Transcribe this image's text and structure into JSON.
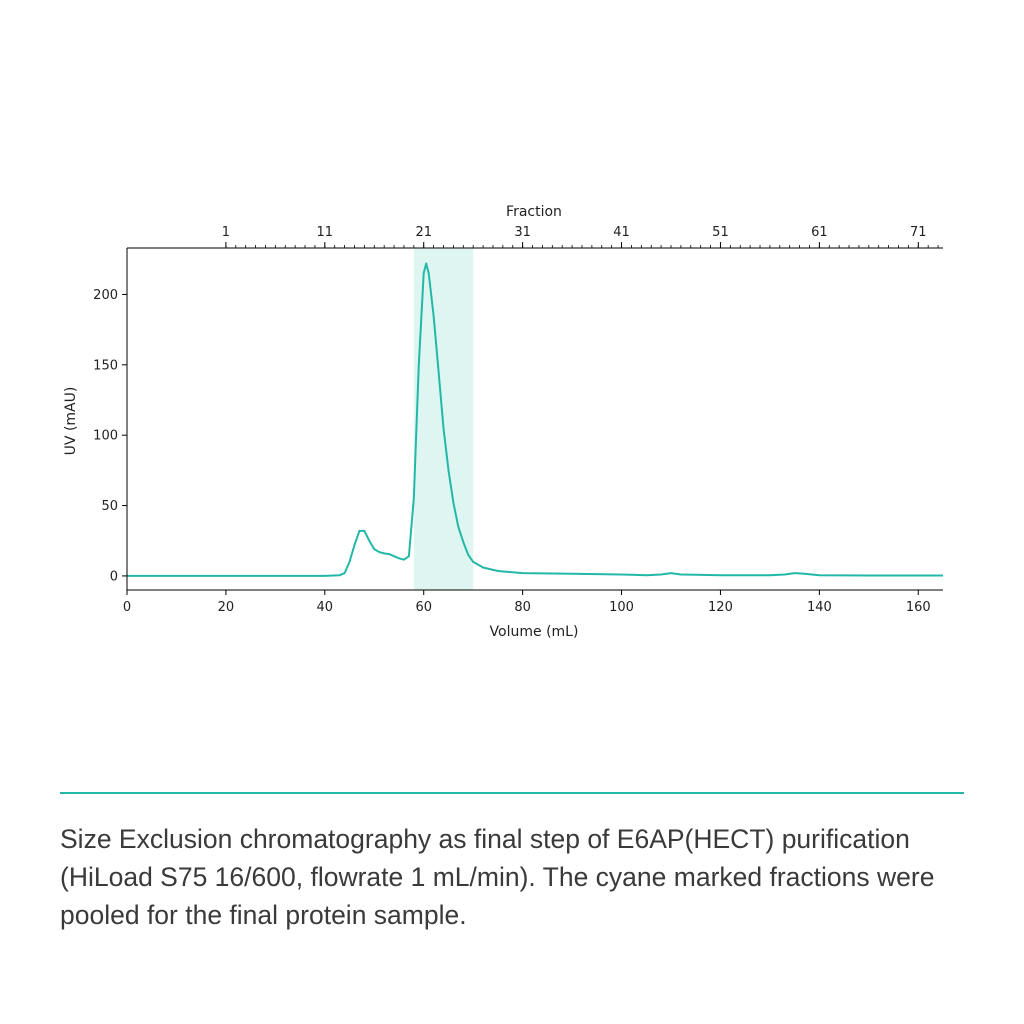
{
  "chart_data": {
    "type": "line",
    "xlabel": "Volume (mL)",
    "ylabel": "UV (mAU)",
    "top_axis_label": "Fraction",
    "xlim": [
      0,
      165
    ],
    "ylim": [
      -10,
      233
    ],
    "x_ticks": [
      0,
      20,
      40,
      60,
      80,
      100,
      120,
      140,
      160
    ],
    "y_ticks": [
      0,
      50,
      100,
      150,
      200
    ],
    "fraction_ticks": [
      {
        "label": "1",
        "volume": 20
      },
      {
        "label": "11",
        "volume": 40
      },
      {
        "label": "21",
        "volume": 60
      },
      {
        "label": "31",
        "volume": 80
      },
      {
        "label": "41",
        "volume": 100
      },
      {
        "label": "51",
        "volume": 120
      },
      {
        "label": "61",
        "volume": 140
      },
      {
        "label": "71",
        "volume": 160
      }
    ],
    "fraction_minor_step": 2,
    "fraction_minor_range": [
      20,
      164
    ],
    "highlight_range": [
      58,
      70
    ],
    "line_color": "#22b8a8",
    "highlight_color": "#d9f3ef",
    "grid": false,
    "series": [
      {
        "x": [
          0,
          10,
          20,
          30,
          40,
          43,
          44,
          45,
          46,
          47,
          48,
          49,
          50,
          51,
          52,
          53,
          54,
          55,
          56,
          57,
          58,
          59,
          60,
          60.5,
          61,
          62,
          63,
          64,
          65,
          66,
          67,
          68,
          69,
          70,
          72,
          75,
          80,
          90,
          100,
          105,
          108,
          110,
          112,
          115,
          120,
          130,
          133,
          135,
          137,
          140,
          150,
          165
        ],
        "y": [
          0,
          0,
          0,
          0,
          0,
          0.5,
          2,
          10,
          22,
          32,
          32,
          25,
          19,
          17,
          16,
          15.5,
          14,
          12.5,
          11.5,
          14,
          55,
          150,
          215,
          222,
          215,
          185,
          145,
          105,
          75,
          52,
          35,
          24,
          15,
          10,
          6,
          3.5,
          2,
          1.5,
          1,
          0.5,
          1,
          2,
          1,
          0.8,
          0.5,
          0.5,
          1,
          2,
          1.5,
          0.5,
          0.3,
          0.3
        ]
      }
    ]
  },
  "caption": "Size Exclusion chromatography as final step of E6AP(HECT) purification (HiLoad S75 16/600, flowrate 1 mL/min). The cyane marked fractions were pooled for the final protein sample."
}
